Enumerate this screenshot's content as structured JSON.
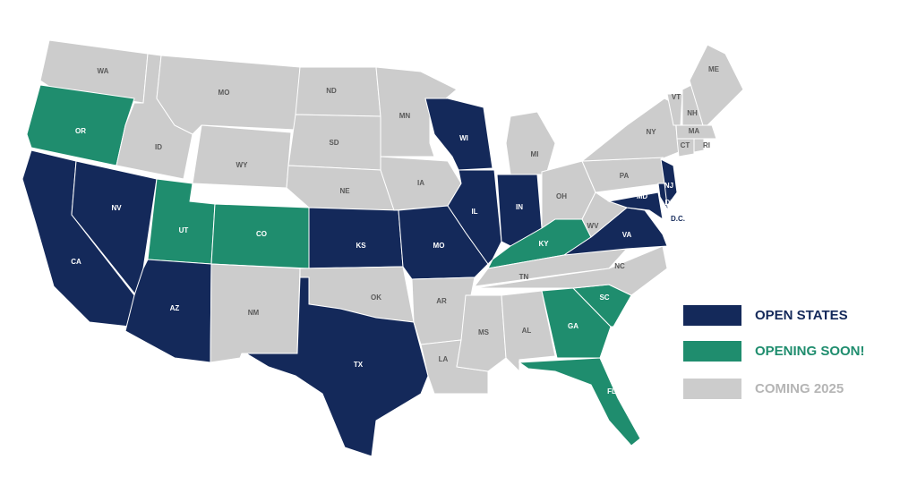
{
  "map": {
    "legend": [
      {
        "label": "OPEN STATES",
        "color": "#14295a"
      },
      {
        "label": "OPENING SOON!",
        "color": "#1f8d6e"
      },
      {
        "label": "COMING 2025",
        "color": "#cccccc"
      }
    ],
    "states": [
      {
        "label": "WA",
        "status": "COMING 2025"
      },
      {
        "label": "OR",
        "status": "OPENING SOON!"
      },
      {
        "label": "CA",
        "status": "OPEN STATES"
      },
      {
        "label": "NV",
        "status": "OPEN STATES"
      },
      {
        "label": "ID",
        "status": "COMING 2025"
      },
      {
        "label": "MO",
        "status": "COMING 2025"
      },
      {
        "label": "WY",
        "status": "COMING 2025"
      },
      {
        "label": "UT",
        "status": "OPENING SOON!"
      },
      {
        "label": "CO",
        "status": "OPENING SOON!"
      },
      {
        "label": "AZ",
        "status": "OPEN STATES"
      },
      {
        "label": "NM",
        "status": "COMING 2025"
      },
      {
        "label": "ND",
        "status": "COMING 2025"
      },
      {
        "label": "SD",
        "status": "COMING 2025"
      },
      {
        "label": "NE",
        "status": "COMING 2025"
      },
      {
        "label": "KS",
        "status": "OPEN STATES"
      },
      {
        "label": "OK",
        "status": "COMING 2025"
      },
      {
        "label": "TX",
        "status": "OPEN STATES"
      },
      {
        "label": "MN",
        "status": "COMING 2025"
      },
      {
        "label": "IA",
        "status": "COMING 2025"
      },
      {
        "label": "MO",
        "status": "OPEN STATES"
      },
      {
        "label": "AR",
        "status": "COMING 2025"
      },
      {
        "label": "LA",
        "status": "COMING 2025"
      },
      {
        "label": "WI",
        "status": "OPEN STATES"
      },
      {
        "label": "IL",
        "status": "OPEN STATES"
      },
      {
        "label": "IN",
        "status": "OPEN STATES"
      },
      {
        "label": "MI",
        "status": "COMING 2025"
      },
      {
        "label": "OH",
        "status": "COMING 2025"
      },
      {
        "label": "KY",
        "status": "OPENING SOON!"
      },
      {
        "label": "TN",
        "status": "COMING 2025"
      },
      {
        "label": "MS",
        "status": "COMING 2025"
      },
      {
        "label": "AL",
        "status": "COMING 2025"
      },
      {
        "label": "GA",
        "status": "OPENING SOON!"
      },
      {
        "label": "FL",
        "status": "OPENING SOON!"
      },
      {
        "label": "SC",
        "status": "OPENING SOON!"
      },
      {
        "label": "NC",
        "status": "COMING 2025"
      },
      {
        "label": "VA",
        "status": "OPEN STATES"
      },
      {
        "label": "WV",
        "status": "COMING 2025"
      },
      {
        "label": "PA",
        "status": "COMING 2025"
      },
      {
        "label": "MD",
        "status": "OPEN STATES"
      },
      {
        "label": "DE",
        "status": "OPEN STATES"
      },
      {
        "label": "NJ",
        "status": "OPEN STATES"
      },
      {
        "label": "NY",
        "status": "COMING 2025"
      },
      {
        "label": "VT",
        "status": "COMING 2025"
      },
      {
        "label": "NH",
        "status": "COMING 2025"
      },
      {
        "label": "ME",
        "status": "COMING 2025"
      },
      {
        "label": "MA",
        "status": "COMING 2025"
      },
      {
        "label": "CT",
        "status": "COMING 2025"
      },
      {
        "label": "RI",
        "status": "COMING 2025"
      },
      {
        "label": "D.C.",
        "status": "OPEN STATES"
      }
    ]
  }
}
